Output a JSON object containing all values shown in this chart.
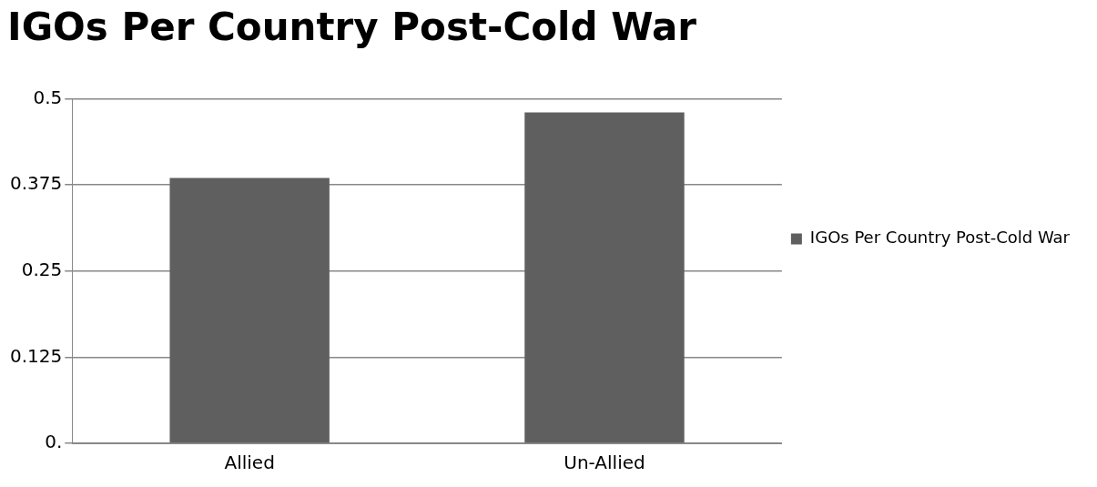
{
  "chart_data": {
    "type": "bar",
    "title": "IGOs Per Country Post-Cold War",
    "categories": [
      "Allied",
      "Un-Allied"
    ],
    "series": [
      {
        "name": "IGOs Per Country Post-Cold War",
        "color": "#5f5f5f",
        "values": [
          0.385,
          0.48
        ]
      }
    ],
    "ylim": [
      0,
      0.5
    ],
    "yticks": [
      {
        "value": 0,
        "label": "0."
      },
      0.125,
      0.25,
      0.375,
      0.5
    ],
    "grid": "y",
    "legend": "right"
  }
}
